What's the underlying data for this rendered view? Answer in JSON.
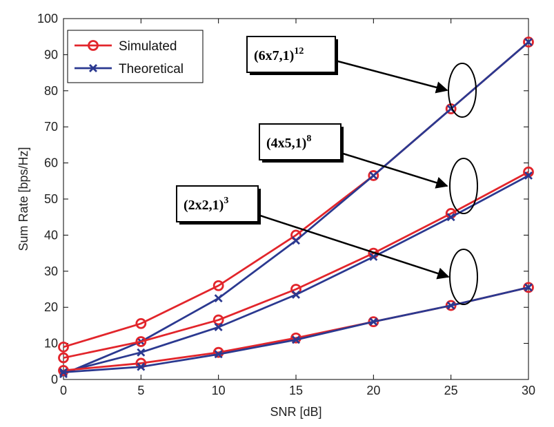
{
  "chart_data": {
    "type": "line",
    "title": "",
    "xlabel": "SNR [dB]",
    "ylabel": "Sum Rate [bps/Hz]",
    "xlim": [
      0,
      30
    ],
    "ylim": [
      0,
      100
    ],
    "xticks": [
      0,
      5,
      10,
      15,
      20,
      25,
      30
    ],
    "yticks": [
      0,
      10,
      20,
      30,
      40,
      50,
      60,
      70,
      80,
      90,
      100
    ],
    "grid": false,
    "legend_position": "top-left",
    "x": [
      0,
      5,
      10,
      15,
      20,
      25,
      30
    ],
    "series": [
      {
        "name": "Simulated",
        "group": "(6x7,1)12",
        "color": "#e2252b",
        "marker": "circle",
        "values": [
          9,
          15.5,
          26,
          40,
          56.5,
          75,
          93.5
        ]
      },
      {
        "name": "Theoretical",
        "group": "(6x7,1)12",
        "color": "#2b3990",
        "marker": "x",
        "values": [
          1.5,
          10.5,
          22.5,
          38.5,
          56.5,
          75,
          93.5
        ]
      },
      {
        "name": "Simulated",
        "group": "(4x5,1)8",
        "color": "#e2252b",
        "marker": "circle",
        "values": [
          6,
          10.5,
          16.5,
          25,
          35,
          46,
          57.5
        ]
      },
      {
        "name": "Theoretical",
        "group": "(4x5,1)8",
        "color": "#2b3990",
        "marker": "x",
        "values": [
          2,
          7.5,
          14.5,
          23.5,
          34,
          45,
          56.5
        ]
      },
      {
        "name": "Simulated",
        "group": "(2x2,1)3",
        "color": "#e2252b",
        "marker": "circle",
        "values": [
          2.5,
          4.5,
          7.5,
          11.5,
          16,
          20.5,
          25.5
        ]
      },
      {
        "name": "Theoretical",
        "group": "(2x2,1)3",
        "color": "#2b3990",
        "marker": "x",
        "values": [
          2,
          3.5,
          7,
          11,
          16,
          20.5,
          25.5
        ]
      }
    ],
    "annotations": [
      {
        "label": "(6x7,1)",
        "sup": "12",
        "target_x": 26,
        "target_y": 80
      },
      {
        "label": "(4x5,1)",
        "sup": "8",
        "target_x": 26,
        "target_y": 46
      },
      {
        "label": "(2x2,1)",
        "sup": "3",
        "target_x": 26,
        "target_y": 20
      }
    ],
    "legend": [
      {
        "name": "Simulated",
        "color": "#e2252b",
        "marker": "circle"
      },
      {
        "name": "Theoretical",
        "color": "#2b3990",
        "marker": "x"
      }
    ]
  }
}
